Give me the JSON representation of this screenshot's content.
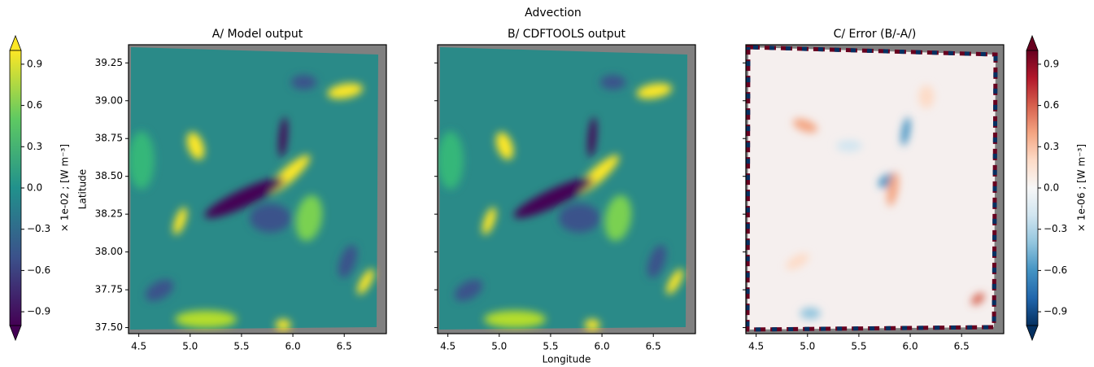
{
  "figure_title": "Advection",
  "chart_data": [
    {
      "type": "heatmap",
      "title": "A/ Model output",
      "ylabel": "Latitude",
      "colormap": "viridis",
      "xlim": [
        4.4,
        6.91
      ],
      "ylim": [
        37.46,
        39.37
      ],
      "xticks": [
        4.5,
        {
          "value": 5,
          "label": "5.0"
        },
        5.5,
        {
          "value": 6,
          "label": "6.0"
        },
        6.5
      ],
      "yticks": [
        {
          "value": 37.5,
          "label": "37.50"
        },
        37.75,
        {
          "value": 38,
          "label": "38.00"
        },
        38.25,
        {
          "value": 38.5,
          "label": "38.50"
        },
        38.75,
        {
          "value": 39,
          "label": "39.00"
        },
        39.25
      ]
    },
    {
      "type": "heatmap",
      "title": "B/ CDFTOOLS output",
      "xlabel": "Longitude",
      "colormap": "viridis",
      "xlim": [
        4.4,
        6.91
      ],
      "ylim": [
        37.46,
        39.37
      ],
      "xticks": [
        4.5,
        {
          "value": 5,
          "label": "5.0"
        },
        5.5,
        {
          "value": 6,
          "label": "6.0"
        },
        6.5
      ]
    },
    {
      "type": "heatmap",
      "title": "C/ Error (B/-A/)",
      "colormap": "RdBu_r",
      "xlim": [
        4.4,
        6.91
      ],
      "ylim": [
        37.46,
        39.37
      ],
      "xticks": [
        4.5,
        {
          "value": 5,
          "label": "5.0"
        },
        5.5,
        {
          "value": 6,
          "label": "6.0"
        },
        6.5
      ]
    }
  ],
  "colorbars": [
    {
      "label": "× 1e-02 ; [W m⁻³]",
      "colormap": "viridis",
      "side": "left",
      "ylim": [
        -1.0,
        1.0
      ],
      "ticks": [
        {
          "value": -0.9,
          "label": "−0.9"
        },
        {
          "value": -0.6,
          "label": "−0.6"
        },
        {
          "value": -0.3,
          "label": "−0.3"
        },
        {
          "value": 0,
          "label": "0.0"
        },
        0.3,
        0.6,
        0.9
      ]
    },
    {
      "label": "× 1e-06 ; [W m⁻³]",
      "colormap": "RdBu_r",
      "side": "right",
      "ylim": [
        -1.0,
        1.0
      ],
      "ticks": [
        {
          "value": -0.9,
          "label": "−0.9"
        },
        {
          "value": -0.6,
          "label": "−0.6"
        },
        {
          "value": -0.3,
          "label": "−0.3"
        },
        {
          "value": 0,
          "label": "0.0"
        },
        0.3,
        0.6,
        0.9
      ]
    }
  ]
}
